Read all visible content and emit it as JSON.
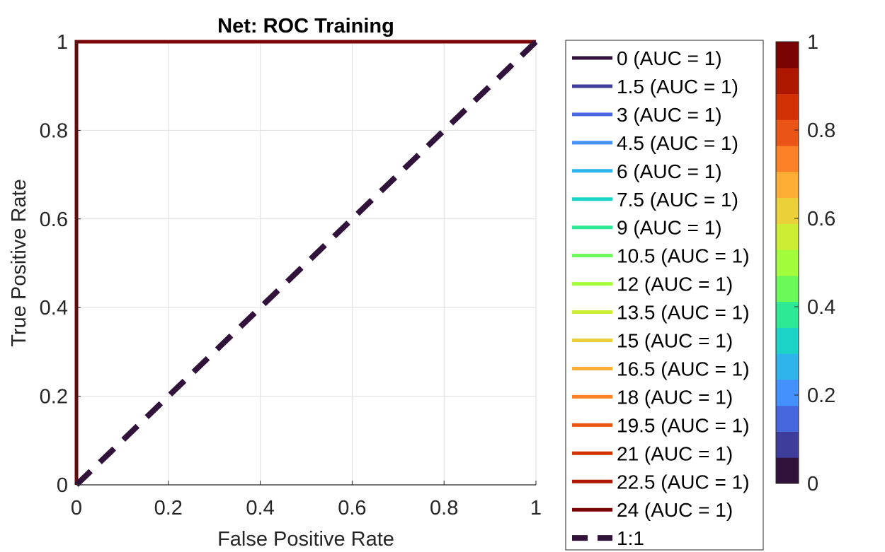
{
  "chart_data": {
    "type": "line",
    "title": "Net: ROC Training",
    "xlabel": "False Positive Rate",
    "ylabel": "True Positive Rate",
    "xlim": [
      0,
      1
    ],
    "ylim": [
      0,
      1
    ],
    "grid": true,
    "xticks": [
      "0",
      "0.2",
      "0.4",
      "0.6",
      "0.8",
      "1"
    ],
    "yticks": [
      "0",
      "0.2",
      "0.4",
      "0.6",
      "0.8",
      "1"
    ],
    "legend_position": "right",
    "series": [
      {
        "name": "0 (AUC = 1)",
        "color": "#30123b",
        "x": [
          0,
          0,
          1
        ],
        "y": [
          0,
          1,
          1
        ]
      },
      {
        "name": "1.5 (AUC = 1)",
        "color": "#3e3d9b",
        "x": [
          0,
          0,
          1
        ],
        "y": [
          0,
          1,
          1
        ]
      },
      {
        "name": "3 (AUC = 1)",
        "color": "#4667dd",
        "x": [
          0,
          0,
          1
        ],
        "y": [
          0,
          1,
          1
        ]
      },
      {
        "name": "4.5 (AUC = 1)",
        "color": "#4490fd",
        "x": [
          0,
          0,
          1
        ],
        "y": [
          0,
          1,
          1
        ]
      },
      {
        "name": "6 (AUC = 1)",
        "color": "#2fb4ec",
        "x": [
          0,
          0,
          1
        ],
        "y": [
          0,
          1,
          1
        ]
      },
      {
        "name": "7.5 (AUC = 1)",
        "color": "#1cd3c8",
        "x": [
          0,
          0,
          1
        ],
        "y": [
          0,
          1,
          1
        ]
      },
      {
        "name": "9 (AUC = 1)",
        "color": "#2de995",
        "x": [
          0,
          0,
          1
        ],
        "y": [
          0,
          1,
          1
        ]
      },
      {
        "name": "10.5 (AUC = 1)",
        "color": "#6bf859",
        "x": [
          0,
          0,
          1
        ],
        "y": [
          0,
          1,
          1
        ]
      },
      {
        "name": "12 (AUC = 1)",
        "color": "#a2fc3c",
        "x": [
          0,
          0,
          1
        ],
        "y": [
          0,
          1,
          1
        ]
      },
      {
        "name": "13.5 (AUC = 1)",
        "color": "#cded34",
        "x": [
          0,
          0,
          1
        ],
        "y": [
          0,
          1,
          1
        ]
      },
      {
        "name": "15 (AUC = 1)",
        "color": "#ecd03a",
        "x": [
          0,
          0,
          1
        ],
        "y": [
          0,
          1,
          1
        ]
      },
      {
        "name": "16.5 (AUC = 1)",
        "color": "#fdae35",
        "x": [
          0,
          0,
          1
        ],
        "y": [
          0,
          1,
          1
        ]
      },
      {
        "name": "18 (AUC = 1)",
        "color": "#fa8126",
        "x": [
          0,
          0,
          1
        ],
        "y": [
          0,
          1,
          1
        ]
      },
      {
        "name": "19.5 (AUC = 1)",
        "color": "#ea5414",
        "x": [
          0,
          0,
          1
        ],
        "y": [
          0,
          1,
          1
        ]
      },
      {
        "name": "21 (AUC = 1)",
        "color": "#d23105",
        "x": [
          0,
          0,
          1
        ],
        "y": [
          0,
          1,
          1
        ]
      },
      {
        "name": "22.5 (AUC = 1)",
        "color": "#ae1801",
        "x": [
          0,
          0,
          1
        ],
        "y": [
          0,
          1,
          1
        ]
      },
      {
        "name": "24 (AUC = 1)",
        "color": "#7a0403",
        "x": [
          0,
          0,
          1
        ],
        "y": [
          0,
          1,
          1
        ]
      }
    ],
    "reference_line": {
      "name": "1:1",
      "color": "#30123b",
      "style": "dashed",
      "x": [
        0,
        1
      ],
      "y": [
        0,
        1
      ]
    },
    "colorbar": {
      "range": [
        0,
        1
      ],
      "ticks": [
        "0",
        "0.2",
        "0.4",
        "0.6",
        "0.8",
        "1"
      ],
      "tick_values": [
        0,
        0.2,
        0.4,
        0.6,
        0.8,
        1
      ],
      "colors": [
        "#30123b",
        "#3e3d9b",
        "#4667dd",
        "#4490fd",
        "#2fb4ec",
        "#1cd3c8",
        "#2de995",
        "#6bf859",
        "#a2fc3c",
        "#cded34",
        "#ecd03a",
        "#fdae35",
        "#fa8126",
        "#ea5414",
        "#d23105",
        "#ae1801",
        "#7a0403"
      ]
    }
  }
}
